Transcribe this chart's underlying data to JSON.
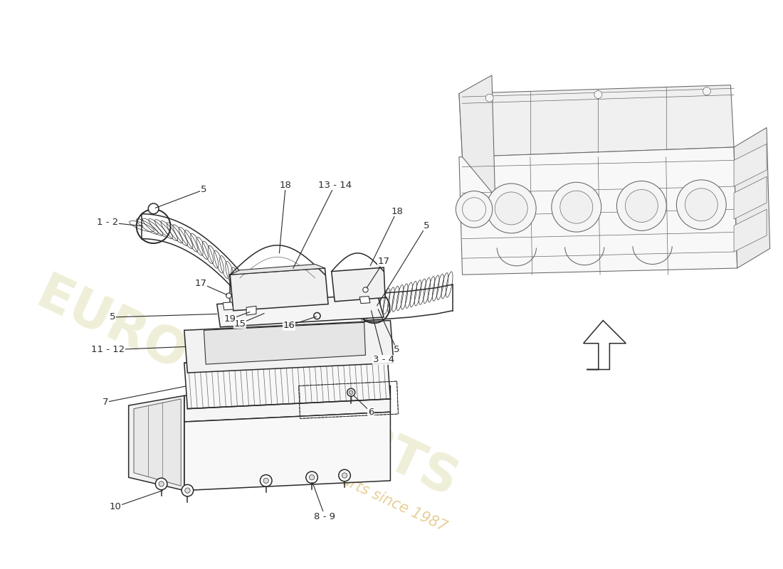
{
  "bg_color": "#ffffff",
  "lc": "#2a2a2a",
  "llc": "#666666",
  "lc_light": "#aaaaaa",
  "wm_color1": "#c8c870",
  "wm_color2": "#c8a870",
  "figsize": [
    11.0,
    8.0
  ],
  "dpi": 100
}
